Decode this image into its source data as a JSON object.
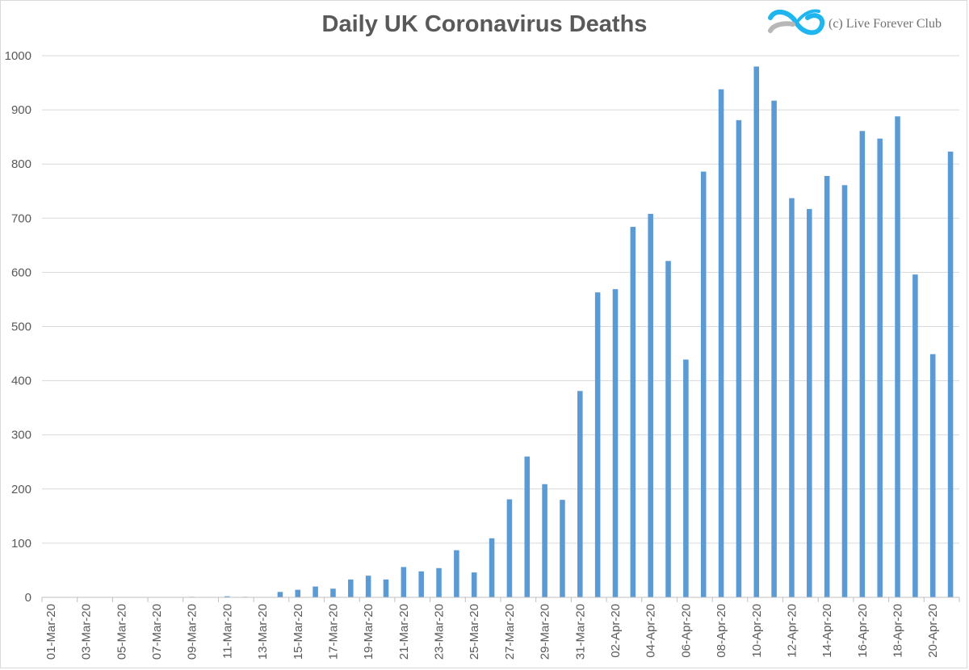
{
  "chart_data": {
    "type": "bar",
    "title": "Daily UK Coronavirus Deaths",
    "xlabel": "",
    "ylabel": "",
    "ylim": [
      0,
      1000
    ],
    "yticks": [
      0,
      100,
      200,
      300,
      400,
      500,
      600,
      700,
      800,
      900,
      1000
    ],
    "grid": true,
    "legend": "none",
    "bar_color": "#5b9bd5",
    "categories": [
      "01-Mar-20",
      "02-Mar-20",
      "03-Mar-20",
      "04-Mar-20",
      "05-Mar-20",
      "06-Mar-20",
      "07-Mar-20",
      "08-Mar-20",
      "09-Mar-20",
      "10-Mar-20",
      "11-Mar-20",
      "12-Mar-20",
      "13-Mar-20",
      "14-Mar-20",
      "15-Mar-20",
      "16-Mar-20",
      "17-Mar-20",
      "18-Mar-20",
      "19-Mar-20",
      "20-Mar-20",
      "21-Mar-20",
      "22-Mar-20",
      "23-Mar-20",
      "24-Mar-20",
      "25-Mar-20",
      "26-Mar-20",
      "27-Mar-20",
      "28-Mar-20",
      "29-Mar-20",
      "30-Mar-20",
      "31-Mar-20",
      "01-Apr-20",
      "02-Apr-20",
      "03-Apr-20",
      "04-Apr-20",
      "05-Apr-20",
      "06-Apr-20",
      "07-Apr-20",
      "08-Apr-20",
      "09-Apr-20",
      "10-Apr-20",
      "11-Apr-20",
      "12-Apr-20",
      "13-Apr-20",
      "14-Apr-20",
      "15-Apr-20",
      "16-Apr-20",
      "17-Apr-20",
      "18-Apr-20",
      "19-Apr-20",
      "20-Apr-20",
      "21-Apr-20"
    ],
    "visible_tick_labels": [
      "01-Mar-20",
      "03-Mar-20",
      "05-Mar-20",
      "07-Mar-20",
      "09-Mar-20",
      "11-Mar-20",
      "13-Mar-20",
      "15-Mar-20",
      "17-Mar-20",
      "19-Mar-20",
      "21-Mar-20",
      "23-Mar-20",
      "25-Mar-20",
      "27-Mar-20",
      "29-Mar-20",
      "31-Mar-20",
      "02-Apr-20",
      "04-Apr-20",
      "06-Apr-20",
      "08-Apr-20",
      "10-Apr-20",
      "12-Apr-20",
      "14-Apr-20",
      "16-Apr-20",
      "18-Apr-20",
      "20-Apr-20"
    ],
    "values": [
      0,
      0,
      0,
      0,
      0,
      0,
      0,
      0,
      1,
      0,
      2,
      1,
      0,
      10,
      14,
      20,
      16,
      33,
      40,
      33,
      56,
      48,
      54,
      87,
      46,
      109,
      181,
      260,
      209,
      180,
      381,
      563,
      569,
      684,
      708,
      621,
      439,
      786,
      938,
      881,
      980,
      917,
      737,
      717,
      778,
      761,
      861,
      847,
      888,
      596,
      449,
      823
    ]
  },
  "watermark": {
    "text": "(c) Live Forever Club",
    "logo_icon": "infinity-swoosh-logo",
    "logo_colors": [
      "#1fb6f0",
      "#b7b7b7"
    ]
  }
}
